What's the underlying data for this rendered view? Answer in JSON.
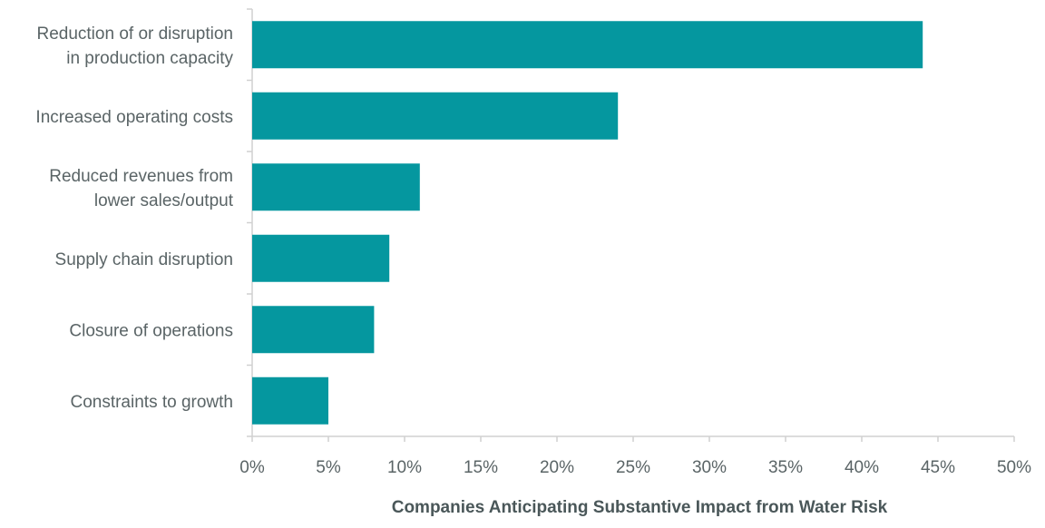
{
  "chart_data": {
    "type": "bar",
    "orientation": "horizontal",
    "categories": [
      [
        "Reduction of or disruption",
        "in production capacity"
      ],
      [
        "Increased operating costs"
      ],
      [
        "Reduced revenues from",
        "lower sales/output"
      ],
      [
        "Supply chain disruption"
      ],
      [
        "Closure of operations"
      ],
      [
        "Constraints to growth"
      ]
    ],
    "values": [
      44,
      24,
      11,
      9,
      8,
      5
    ],
    "xlabel": "Companies Anticipating Substantive Impact from Water Risk",
    "ylabel": "",
    "xlim": [
      0,
      50
    ],
    "xticks": [
      0,
      5,
      10,
      15,
      20,
      25,
      30,
      35,
      40,
      45,
      50
    ],
    "xtick_labels": [
      "0%",
      "5%",
      "10%",
      "15%",
      "20%",
      "25%",
      "30%",
      "35%",
      "40%",
      "45%",
      "50%"
    ],
    "grid": false,
    "legend": "none",
    "colors": {
      "bar": "#05979F",
      "text": "#5A6466",
      "axis": "#D0D0D0",
      "title": "#4A5759"
    }
  }
}
